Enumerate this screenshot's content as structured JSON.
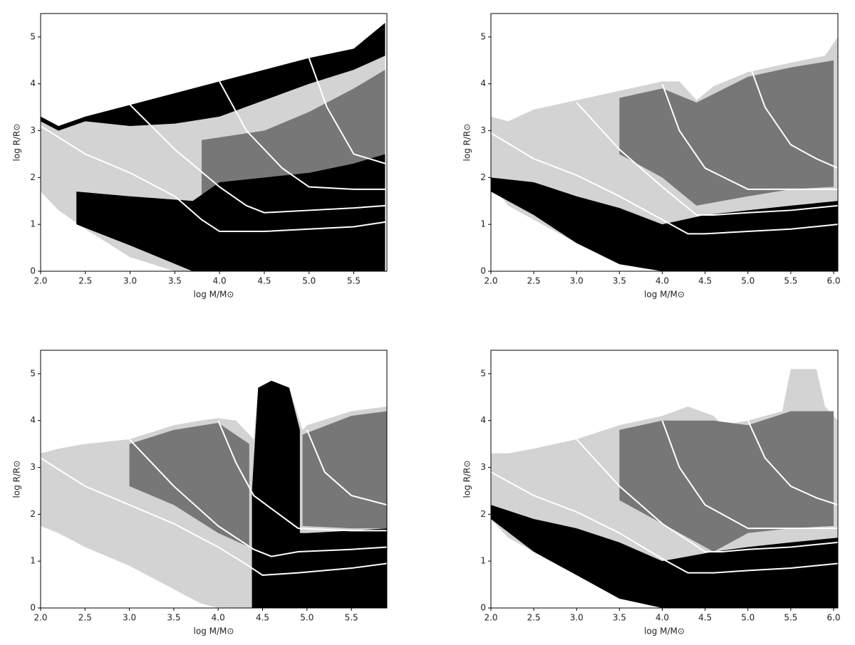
{
  "chart_data": [
    {
      "type": "line",
      "xlabel": "log M/M⊙",
      "ylabel": "log R/R⊙",
      "xlim": [
        2.0,
        5.87
      ],
      "ylim": [
        0,
        5.5
      ],
      "xticks": [
        {
          "value": 2.0,
          "label": "2.0"
        },
        {
          "value": 2.5,
          "label": "2.5"
        },
        {
          "value": 3.0,
          "label": "3.0"
        },
        {
          "value": 3.5,
          "label": "3.5"
        },
        {
          "value": 4.0,
          "label": "4.0"
        },
        {
          "value": 4.5,
          "label": "4.5"
        },
        {
          "value": 5.0,
          "label": "5.0"
        },
        {
          "value": 5.5,
          "label": "5.5"
        }
      ],
      "yticks": [
        0,
        1,
        2,
        3,
        4,
        5
      ],
      "areas": [
        {
          "color": "#d3d3d3",
          "x": [
            2.0,
            2.2,
            2.5,
            3.0,
            3.5,
            4.0,
            4.5,
            5.0,
            5.5,
            5.85
          ],
          "upper": [
            3.3,
            3.1,
            3.3,
            3.55,
            3.8,
            4.05,
            4.3,
            4.55,
            4.75,
            5.3
          ],
          "lower": [
            1.7,
            1.3,
            0.9,
            0.3,
            0,
            0,
            0,
            0,
            0,
            0
          ]
        },
        {
          "color": "#777777",
          "x": [
            3.8,
            4.5,
            5.0,
            5.5,
            5.85
          ],
          "upper": [
            2.8,
            3.0,
            3.4,
            3.9,
            4.3
          ],
          "lower": [
            1.3,
            1.9,
            2.1,
            2.3,
            2.5
          ]
        },
        {
          "color": "#000000",
          "x": [
            2.0,
            2.2,
            2.5,
            3.0,
            3.5,
            4.0,
            4.5,
            5.0,
            5.5,
            5.85
          ],
          "upper": [
            3.3,
            3.1,
            3.3,
            3.55,
            3.8,
            4.05,
            4.3,
            4.55,
            4.75,
            5.3
          ],
          "lower": [
            3.2,
            3.0,
            3.2,
            3.1,
            3.15,
            3.3,
            3.65,
            4.0,
            4.3,
            4.6
          ]
        },
        {
          "color": "#000000",
          "x": [
            2.4,
            3.0,
            3.7,
            4.0,
            4.5,
            5.0,
            5.5,
            5.85
          ],
          "upper": [
            1.7,
            1.6,
            1.5,
            1.9,
            2.0,
            2.1,
            2.3,
            2.5
          ],
          "lower": [
            1.0,
            0.55,
            0,
            0,
            0,
            0,
            0,
            0
          ]
        }
      ],
      "series": [
        {
          "color": "#ffffff",
          "x": [
            2.0,
            2.5,
            3.0,
            3.5,
            3.8,
            4.0,
            4.5,
            5.0,
            5.5,
            5.85
          ],
          "values": [
            3.1,
            2.5,
            2.1,
            1.6,
            1.1,
            0.85,
            0.85,
            0.9,
            0.95,
            1.05
          ]
        },
        {
          "color": "#ffffff",
          "x": [
            3.0,
            3.5,
            4.0,
            4.3,
            4.5,
            5.0,
            5.5,
            5.85
          ],
          "values": [
            3.55,
            2.6,
            1.8,
            1.4,
            1.25,
            1.3,
            1.35,
            1.4
          ]
        },
        {
          "color": "#ffffff",
          "x": [
            4.0,
            4.3,
            4.7,
            5.0,
            5.5,
            5.85
          ],
          "values": [
            4.05,
            3.0,
            2.2,
            1.8,
            1.75,
            1.75
          ]
        },
        {
          "color": "#ffffff",
          "x": [
            5.0,
            5.2,
            5.5,
            5.85
          ],
          "values": [
            4.55,
            3.5,
            2.5,
            2.3
          ]
        }
      ]
    },
    {
      "type": "line",
      "xlabel": "log M/M⊙",
      "ylabel": "log R/R⊙",
      "xlim": [
        2.0,
        6.05
      ],
      "ylim": [
        0,
        5.5
      ],
      "xticks": [
        {
          "value": 2.0,
          "label": "2.0"
        },
        {
          "value": 2.5,
          "label": "2.5"
        },
        {
          "value": 3.0,
          "label": "3.0"
        },
        {
          "value": 3.5,
          "label": "3.5"
        },
        {
          "value": 4.0,
          "label": "4.0"
        },
        {
          "value": 4.5,
          "label": "4.5"
        },
        {
          "value": 5.0,
          "label": "5.0"
        },
        {
          "value": 5.5,
          "label": "5.5"
        },
        {
          "value": 6.0,
          "label": "6.0"
        }
      ],
      "yticks": [
        0,
        1,
        2,
        3,
        4,
        5
      ],
      "areas": [
        {
          "color": "#d3d3d3",
          "x": [
            2.0,
            2.2,
            2.5,
            3.0,
            3.5,
            4.0,
            4.2,
            4.4,
            4.6,
            5.0,
            5.5,
            5.9,
            6.05
          ],
          "upper": [
            3.3,
            3.2,
            3.45,
            3.65,
            3.85,
            4.05,
            4.05,
            3.65,
            3.95,
            4.25,
            4.45,
            4.6,
            5.0
          ],
          "lower": [
            1.9,
            1.4,
            1.1,
            0.6,
            0.2,
            0,
            0,
            0,
            0,
            0,
            0,
            0,
            0
          ]
        },
        {
          "color": "#777777",
          "x": [
            3.5,
            4.0,
            4.4,
            5.0,
            5.5,
            6.0
          ],
          "upper": [
            3.7,
            3.9,
            3.6,
            4.15,
            4.35,
            4.5
          ],
          "lower": [
            2.5,
            2.0,
            1.4,
            1.6,
            1.75,
            1.8
          ]
        },
        {
          "color": "#000000",
          "x": [
            2.0,
            2.5,
            3.0,
            3.5,
            4.0,
            4.5,
            5.0,
            5.5,
            6.05
          ],
          "upper": [
            2.0,
            1.9,
            1.6,
            1.35,
            1.0,
            1.2,
            1.3,
            1.4,
            1.5
          ],
          "lower": [
            1.7,
            1.2,
            0.6,
            0.15,
            0,
            0,
            0,
            0,
            0
          ]
        }
      ],
      "series": [
        {
          "color": "#ffffff",
          "x": [
            2.0,
            2.5,
            3.0,
            3.5,
            4.0,
            4.3,
            4.5,
            5.0,
            5.5,
            6.05
          ],
          "values": [
            2.95,
            2.4,
            2.05,
            1.6,
            1.1,
            0.8,
            0.8,
            0.85,
            0.9,
            1.0
          ]
        },
        {
          "color": "#ffffff",
          "x": [
            3.0,
            3.5,
            4.0,
            4.4,
            4.6,
            5.0,
            5.5,
            6.05
          ],
          "values": [
            3.6,
            2.6,
            1.8,
            1.2,
            1.2,
            1.25,
            1.3,
            1.4
          ]
        },
        {
          "color": "#ffffff",
          "x": [
            4.0,
            4.2,
            4.5,
            5.0,
            5.5,
            6.05
          ],
          "values": [
            4.0,
            3.0,
            2.2,
            1.75,
            1.75,
            1.75
          ]
        },
        {
          "color": "#ffffff",
          "x": [
            5.0,
            5.2,
            5.5,
            5.8,
            6.05
          ],
          "values": [
            4.5,
            3.5,
            2.7,
            2.4,
            2.2
          ]
        }
      ]
    },
    {
      "type": "line",
      "xlabel": "log M/M⊙",
      "ylabel": "log R/R⊙",
      "xlim": [
        2.0,
        5.9
      ],
      "ylim": [
        0,
        5.5
      ],
      "xticks": [
        {
          "value": 2.0,
          "label": "2.0"
        },
        {
          "value": 2.5,
          "label": "2.5"
        },
        {
          "value": 3.0,
          "label": "3.0"
        },
        {
          "value": 3.5,
          "label": "3.5"
        },
        {
          "value": 4.0,
          "label": "4.0"
        },
        {
          "value": 4.5,
          "label": "4.5"
        },
        {
          "value": 5.0,
          "label": "5.0"
        },
        {
          "value": 5.5,
          "label": "5.5"
        }
      ],
      "yticks": [
        0,
        1,
        2,
        3,
        4,
        5
      ],
      "areas": [
        {
          "color": "#d3d3d3",
          "x": [
            2.0,
            2.2,
            2.5,
            3.0,
            3.5,
            3.8,
            4.0,
            4.2,
            4.4,
            4.45,
            4.6,
            4.8,
            4.95,
            5.0,
            5.5,
            5.9
          ],
          "upper": [
            3.3,
            3.4,
            3.5,
            3.6,
            3.9,
            4.0,
            4.05,
            4.0,
            3.6,
            4.7,
            4.85,
            4.7,
            3.8,
            3.9,
            4.2,
            4.3
          ],
          "lower": [
            1.75,
            1.6,
            1.3,
            0.9,
            0.4,
            0.1,
            0,
            0,
            0,
            0,
            0,
            0,
            0,
            0,
            0,
            0
          ]
        },
        {
          "color": "#777777",
          "x": [
            3.0,
            3.5,
            4.0,
            4.35
          ],
          "upper": [
            3.5,
            3.8,
            3.95,
            3.5
          ],
          "lower": [
            2.6,
            2.2,
            1.6,
            1.3
          ]
        },
        {
          "color": "#777777",
          "x": [
            4.95,
            5.5,
            5.9
          ],
          "upper": [
            3.7,
            4.1,
            4.2
          ],
          "lower": [
            1.75,
            1.7,
            1.7
          ]
        },
        {
          "color": "#000000",
          "x": [
            4.38,
            4.45,
            4.6,
            4.8,
            4.92
          ],
          "upper": [
            2.5,
            4.7,
            4.85,
            4.7,
            3.8
          ],
          "lower": [
            0,
            0,
            0,
            0,
            0
          ]
        },
        {
          "color": "#000000",
          "x": [
            4.9,
            5.0,
            5.5,
            5.9
          ],
          "upper": [
            1.6,
            1.6,
            1.65,
            1.7
          ],
          "lower": [
            0,
            0,
            0,
            0
          ]
        }
      ],
      "series": [
        {
          "color": "#ffffff",
          "x": [
            2.0,
            2.5,
            3.0,
            3.5,
            4.0,
            4.3,
            4.5,
            4.9,
            5.5,
            5.9
          ],
          "values": [
            3.2,
            2.6,
            2.2,
            1.8,
            1.3,
            0.95,
            0.7,
            0.75,
            0.85,
            0.95
          ]
        },
        {
          "color": "#ffffff",
          "x": [
            3.0,
            3.5,
            4.0,
            4.4,
            4.6,
            4.9,
            5.5,
            5.9
          ],
          "values": [
            3.6,
            2.6,
            1.75,
            1.25,
            1.1,
            1.2,
            1.25,
            1.3
          ]
        },
        {
          "color": "#ffffff",
          "x": [
            4.0,
            4.2,
            4.4,
            4.9,
            5.5,
            5.9
          ],
          "values": [
            4.0,
            3.1,
            2.4,
            1.7,
            1.65,
            1.65
          ]
        },
        {
          "color": "#ffffff",
          "x": [
            5.0,
            5.2,
            5.5,
            5.9
          ],
          "values": [
            3.8,
            2.9,
            2.4,
            2.2
          ]
        }
      ]
    },
    {
      "type": "line",
      "xlabel": "log M/M⊙",
      "ylabel": "log R/R⊙",
      "xlim": [
        2.0,
        6.05
      ],
      "ylim": [
        0,
        5.5
      ],
      "xticks": [
        {
          "value": 2.0,
          "label": "2.0"
        },
        {
          "value": 2.5,
          "label": "2.5"
        },
        {
          "value": 3.0,
          "label": "3.0"
        },
        {
          "value": 3.5,
          "label": "3.5"
        },
        {
          "value": 4.0,
          "label": "4.0"
        },
        {
          "value": 4.5,
          "label": "4.5"
        },
        {
          "value": 5.0,
          "label": "5.0"
        },
        {
          "value": 5.5,
          "label": "5.5"
        },
        {
          "value": 6.0,
          "label": "6.0"
        }
      ],
      "yticks": [
        0,
        1,
        2,
        3,
        4,
        5
      ],
      "areas": [
        {
          "color": "#d3d3d3",
          "x": [
            2.0,
            2.2,
            2.5,
            3.0,
            3.5,
            4.0,
            4.3,
            4.6,
            4.7,
            5.0,
            5.4,
            5.5,
            5.8,
            5.9,
            6.05
          ],
          "upper": [
            3.3,
            3.3,
            3.4,
            3.6,
            3.9,
            4.1,
            4.3,
            4.1,
            3.9,
            4.0,
            4.2,
            5.1,
            5.1,
            4.3,
            4.0
          ],
          "lower": [
            1.9,
            1.5,
            1.2,
            0.7,
            0.2,
            0,
            0,
            0,
            0,
            0,
            0,
            0,
            0,
            0,
            0
          ]
        },
        {
          "color": "#777777",
          "x": [
            3.5,
            4.0,
            4.6,
            5.0,
            5.5,
            6.0
          ],
          "upper": [
            3.8,
            4.0,
            4.0,
            3.9,
            4.2,
            4.2
          ],
          "lower": [
            2.3,
            1.8,
            1.2,
            1.6,
            1.7,
            1.75
          ]
        },
        {
          "color": "#000000",
          "x": [
            2.0,
            2.5,
            3.0,
            3.5,
            4.0,
            4.6,
            5.0,
            5.5,
            6.05
          ],
          "upper": [
            2.2,
            1.9,
            1.7,
            1.4,
            1.0,
            1.2,
            1.3,
            1.4,
            1.5
          ],
          "lower": [
            1.9,
            1.2,
            0.7,
            0.2,
            0,
            0,
            0,
            0,
            0
          ]
        }
      ],
      "series": [
        {
          "color": "#ffffff",
          "x": [
            2.0,
            2.5,
            3.0,
            3.5,
            4.0,
            4.3,
            4.6,
            5.0,
            5.5,
            6.05
          ],
          "values": [
            2.9,
            2.4,
            2.05,
            1.6,
            1.05,
            0.75,
            0.75,
            0.8,
            0.85,
            0.95
          ]
        },
        {
          "color": "#ffffff",
          "x": [
            3.0,
            3.5,
            4.0,
            4.5,
            4.7,
            5.0,
            5.5,
            6.05
          ],
          "values": [
            3.6,
            2.6,
            1.8,
            1.2,
            1.2,
            1.25,
            1.3,
            1.4
          ]
        },
        {
          "color": "#ffffff",
          "x": [
            4.0,
            4.2,
            4.5,
            5.0,
            5.5,
            6.05
          ],
          "values": [
            4.0,
            3.0,
            2.2,
            1.7,
            1.7,
            1.7
          ]
        },
        {
          "color": "#ffffff",
          "x": [
            5.0,
            5.2,
            5.5,
            5.8,
            6.05
          ],
          "values": [
            4.0,
            3.2,
            2.6,
            2.35,
            2.2
          ]
        }
      ]
    }
  ]
}
